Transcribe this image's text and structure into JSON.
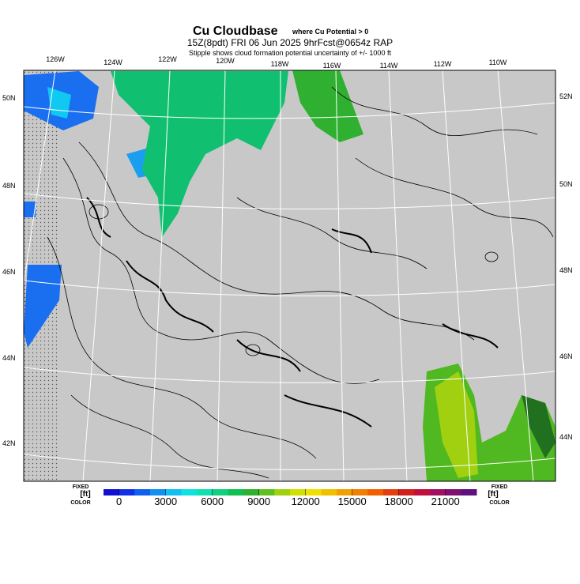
{
  "header": {
    "title": "Cu Cloudbase",
    "title_note": "where Cu Potential > 0",
    "subtitle": "15Z(8pdt) FRI 06 Jun 2025 9hrFcst@0654z RAP",
    "note": "Stipple shows cloud formation potential uncertainty of +/- 1000 ft"
  },
  "map": {
    "lon_labels": [
      "126W",
      "124W",
      "122W",
      "120W",
      "118W",
      "116W",
      "114W",
      "112W",
      "110W"
    ],
    "lat_labels_left": [
      "50N",
      "48N",
      "46N",
      "44N",
      "42N"
    ],
    "lat_labels_right": [
      "52N",
      "50N",
      "48N",
      "46N",
      "44N"
    ]
  },
  "colorbar": {
    "lim": [
      -1000,
      23000
    ],
    "colors": [
      "#1010d0",
      "#1030e8",
      "#1060f0",
      "#1090f0",
      "#10c0f0",
      "#10e0e0",
      "#10e0b0",
      "#10d080",
      "#10c050",
      "#30b030",
      "#60c020",
      "#a0d010",
      "#d0e000",
      "#f0e000",
      "#f0c000",
      "#f0a000",
      "#f08000",
      "#f06000",
      "#e04010",
      "#d02020",
      "#c01040",
      "#a01060",
      "#801070",
      "#601080"
    ],
    "ticks": [
      0,
      3000,
      6000,
      9000,
      12000,
      15000,
      18000,
      21000
    ],
    "left_top": "FIXED",
    "left_unit": "[ft]",
    "left_bottom": "COLOR",
    "right_top": "FIXED",
    "right_unit": "[ft]",
    "right_bottom": "COLOR"
  }
}
